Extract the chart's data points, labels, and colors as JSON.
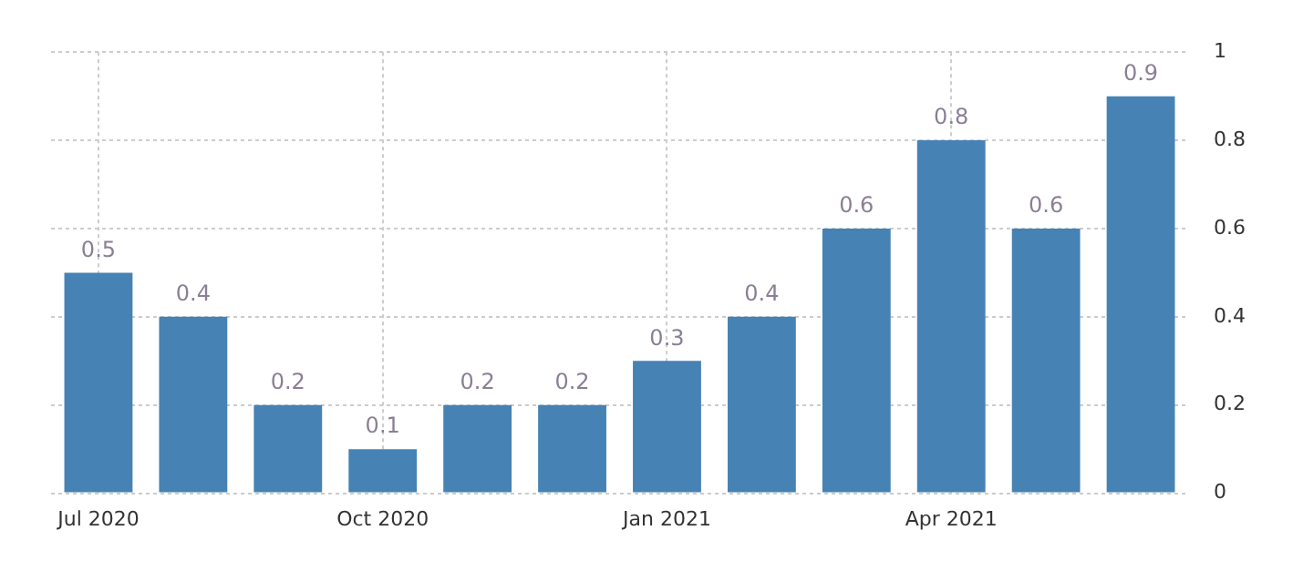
{
  "chart_data": {
    "type": "bar",
    "categories": [
      "Jul 2020",
      null,
      null,
      "Oct 2020",
      null,
      null,
      "Jan 2021",
      null,
      null,
      "Apr 2021",
      null,
      null
    ],
    "values": [
      0.5,
      0.4,
      0.2,
      0.1,
      0.2,
      0.2,
      0.3,
      0.4,
      0.6,
      0.8,
      0.6,
      0.9
    ],
    "color": "#4682b4",
    "ylim": [
      0,
      1
    ],
    "yticks": [
      0,
      0.2,
      0.4,
      0.6,
      0.8,
      1
    ],
    "grid": true,
    "data_labels": true,
    "legend": false
  }
}
